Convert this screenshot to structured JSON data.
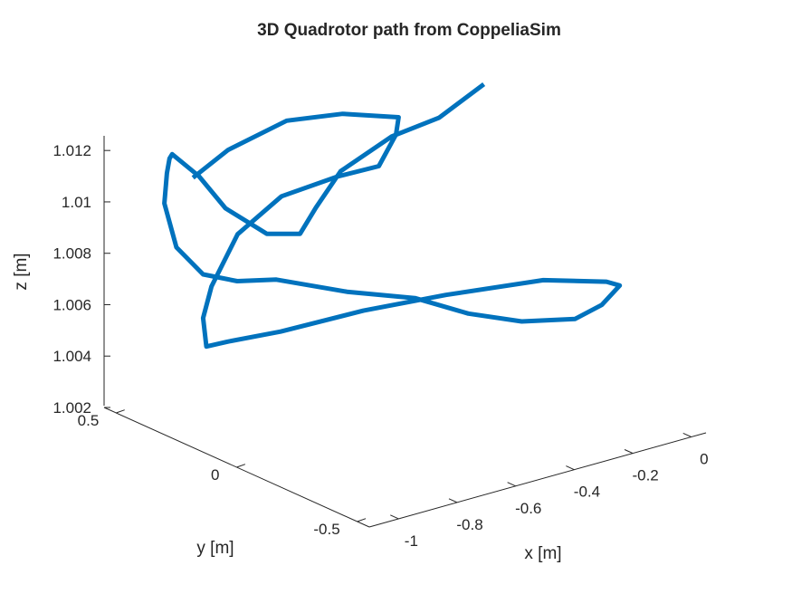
{
  "chart_data": {
    "type": "line",
    "projection": "3d",
    "title": "3D Quadrotor path from CoppeliaSim",
    "xlabel": "x [m]",
    "ylabel": "y [m]",
    "zlabel": "z [m]",
    "xlim": [
      -1.1,
      0.05
    ],
    "ylim": [
      -0.55,
      0.55
    ],
    "zlim": [
      1.002,
      1.0125
    ],
    "x_ticks": [
      "-1",
      "-0.8",
      "-0.6",
      "-0.4",
      "-0.2",
      "0"
    ],
    "y_ticks": [
      "-0.5",
      "0",
      "0.5"
    ],
    "z_ticks": [
      "1.002",
      "1.004",
      "1.006",
      "1.008",
      "1.01",
      "1.012"
    ],
    "grid": false,
    "line_color": "#0072BD",
    "series": [
      {
        "points": [
          [
            -0.05,
            0.25,
            1.0125
          ],
          [
            -0.12,
            0.35,
            1.011
          ],
          [
            -0.2,
            0.45,
            1.0101
          ],
          [
            -0.35,
            0.48,
            1.0091
          ],
          [
            -0.5,
            0.4,
            1.0085
          ],
          [
            -0.62,
            0.32,
            1.0082
          ],
          [
            -0.75,
            0.3,
            1.0087
          ],
          [
            -0.85,
            0.35,
            1.0098
          ],
          [
            -0.9,
            0.4,
            1.011
          ],
          [
            -0.95,
            0.45,
            1.0118
          ],
          [
            -1.0,
            0.4,
            1.012
          ],
          [
            -1.05,
            0.35,
            1.0118
          ],
          [
            -1.1,
            0.3,
            1.011
          ],
          [
            -1.1,
            0.25,
            1.0095
          ],
          [
            -1.05,
            0.2,
            1.0085
          ],
          [
            -0.95,
            0.18,
            1.008
          ],
          [
            -0.8,
            0.2,
            1.0075
          ],
          [
            -0.6,
            0.15,
            1.0066
          ],
          [
            -0.45,
            0.05,
            1.0063
          ],
          [
            -0.35,
            -0.05,
            1.0058
          ],
          [
            -0.25,
            -0.15,
            1.0056
          ],
          [
            -0.15,
            -0.25,
            1.0058
          ],
          [
            -0.1,
            -0.3,
            1.0064
          ],
          [
            -0.08,
            -0.35,
            1.0073
          ],
          [
            -0.15,
            -0.38,
            1.0078
          ],
          [
            -0.3,
            -0.3,
            1.008
          ],
          [
            -0.55,
            -0.2,
            1.0078
          ],
          [
            -0.75,
            -0.1,
            1.0074
          ],
          [
            -0.95,
            0.0,
            1.0068
          ],
          [
            -1.05,
            0.1,
            1.0063
          ],
          [
            -1.08,
            0.15,
            1.006
          ],
          [
            -1.05,
            0.2,
            1.0068
          ],
          [
            -0.98,
            0.25,
            1.0076
          ],
          [
            -0.85,
            0.3,
            1.009
          ],
          [
            -0.7,
            0.3,
            1.01
          ],
          [
            -0.55,
            0.25,
            1.0105
          ],
          [
            -0.45,
            0.2,
            1.0108
          ],
          [
            -0.35,
            0.25,
            1.0115
          ],
          [
            -0.3,
            0.3,
            1.0118
          ],
          [
            -0.45,
            0.35,
            1.0122
          ],
          [
            -0.6,
            0.4,
            1.0122
          ],
          [
            -0.8,
            0.4,
            1.0117
          ],
          [
            -0.92,
            0.4,
            1.011
          ]
        ]
      }
    ]
  }
}
